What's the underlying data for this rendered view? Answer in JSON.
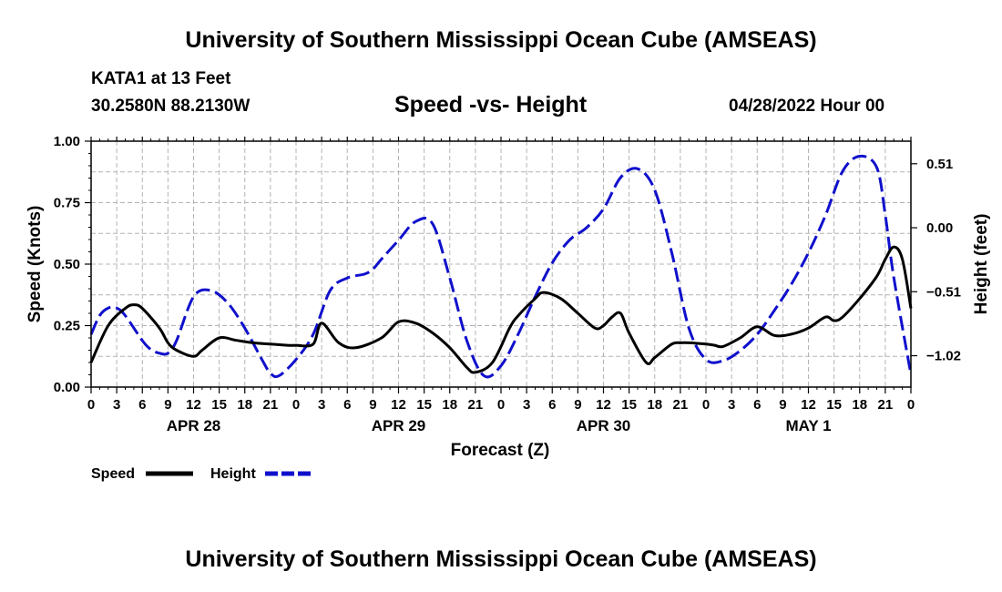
{
  "page": {
    "title_top": "University of Southern Mississippi Ocean Cube (AMSEAS)",
    "title_bottom": "University of Southern Mississippi Ocean Cube (AMSEAS)",
    "station_name": "KATA1 at 13 Feet",
    "station_coords": "30.2580N  88.2130W",
    "forecast_time": "04/28/2022 Hour 00"
  },
  "chart_data": {
    "type": "line",
    "title": "Speed -vs- Height",
    "xlabel": "Forecast (Z)",
    "ylabel": "Speed (Knots)",
    "ylabel_right": "Height (feet)",
    "xlim": [
      0,
      96
    ],
    "ylim": [
      0,
      1.0
    ],
    "ylim_right": [
      -1.27,
      0.69
    ],
    "x_tick_values": [
      0,
      3,
      6,
      9,
      12,
      15,
      18,
      21,
      24,
      27,
      30,
      33,
      36,
      39,
      42,
      45,
      48,
      51,
      54,
      57,
      60,
      63,
      66,
      69,
      72,
      75,
      78,
      81,
      84,
      87,
      90,
      93,
      96
    ],
    "x_tick_labels": [
      "0",
      "3",
      "6",
      "9",
      "12",
      "15",
      "18",
      "21",
      "0",
      "3",
      "6",
      "9",
      "12",
      "15",
      "18",
      "21",
      "0",
      "3",
      "6",
      "9",
      "12",
      "15",
      "18",
      "21",
      "0",
      "3",
      "6",
      "9",
      "12",
      "15",
      "18",
      "21",
      "0"
    ],
    "day_labels": [
      {
        "x": 12,
        "label": "APR 28"
      },
      {
        "x": 36,
        "label": "APR 29"
      },
      {
        "x": 60,
        "label": "APR 30"
      },
      {
        "x": 84,
        "label": "MAY 1"
      }
    ],
    "y_ticks": [
      0.0,
      0.25,
      0.5,
      0.75,
      1.0
    ],
    "y_tick_labels": [
      "0.00",
      "0.25",
      "0.50",
      "0.75",
      "1.00"
    ],
    "y_right_ticks": [
      -1.02,
      -0.51,
      0.0,
      0.51
    ],
    "y_right_tick_labels": [
      "−1.02",
      "−0.51",
      "0.00",
      "0.51"
    ],
    "grid": true,
    "legend": [
      {
        "name": "Speed",
        "color": "#000000",
        "style": "solid"
      },
      {
        "name": "Height",
        "color": "#1010cc",
        "style": "dashed"
      }
    ],
    "series": [
      {
        "name": "Speed",
        "axis": "left",
        "color": "#000000",
        "x": [
          0,
          2,
          4,
          5,
          6,
          8,
          9,
          10,
          12,
          13,
          15,
          17,
          19,
          21,
          23,
          24,
          26,
          27,
          29,
          31,
          34,
          36,
          38,
          40,
          42,
          44,
          45,
          47,
          49,
          50,
          52,
          53,
          55,
          57,
          59,
          60,
          61,
          62,
          63,
          65,
          66,
          68,
          69,
          70,
          72,
          73,
          74,
          76,
          78,
          80,
          82,
          84,
          86,
          87,
          88,
          90,
          92,
          93,
          94,
          95,
          96
        ],
        "values": [
          0.1,
          0.25,
          0.32,
          0.335,
          0.32,
          0.24,
          0.18,
          0.15,
          0.125,
          0.15,
          0.2,
          0.19,
          0.18,
          0.175,
          0.17,
          0.17,
          0.175,
          0.26,
          0.18,
          0.16,
          0.2,
          0.265,
          0.26,
          0.22,
          0.16,
          0.08,
          0.06,
          0.1,
          0.24,
          0.29,
          0.36,
          0.385,
          0.36,
          0.3,
          0.24,
          0.25,
          0.285,
          0.3,
          0.22,
          0.1,
          0.12,
          0.175,
          0.18,
          0.18,
          0.175,
          0.17,
          0.165,
          0.2,
          0.245,
          0.21,
          0.215,
          0.24,
          0.285,
          0.27,
          0.285,
          0.36,
          0.45,
          0.52,
          0.57,
          0.52,
          0.32
        ]
      },
      {
        "name": "Height",
        "axis": "right",
        "color": "#1010cc",
        "x": [
          0,
          1,
          2,
          3,
          4,
          6,
          7,
          8,
          9,
          10,
          12,
          14,
          16,
          18,
          20,
          21,
          22,
          24,
          26,
          28,
          30,
          32,
          33,
          34,
          36,
          38,
          40,
          42,
          44,
          46,
          48,
          50,
          52,
          54,
          56,
          58,
          60,
          62,
          64,
          66,
          68,
          70,
          72,
          74,
          76,
          78,
          80,
          82,
          84,
          86,
          88,
          90,
          92,
          93,
          94,
          96
        ],
        "values": [
          -0.85,
          -0.7,
          -0.64,
          -0.64,
          -0.7,
          -0.9,
          -0.97,
          -1.0,
          -1.0,
          -0.9,
          -0.55,
          -0.5,
          -0.6,
          -0.8,
          -1.05,
          -1.16,
          -1.18,
          -1.05,
          -0.85,
          -0.5,
          -0.4,
          -0.37,
          -0.33,
          -0.25,
          -0.1,
          0.05,
          0.03,
          -0.4,
          -0.9,
          -1.18,
          -1.1,
          -0.85,
          -0.55,
          -0.28,
          -0.1,
          0.0,
          0.15,
          0.4,
          0.47,
          0.3,
          -0.2,
          -0.8,
          -1.05,
          -1.06,
          -0.98,
          -0.85,
          -0.66,
          -0.45,
          -0.2,
          0.1,
          0.45,
          0.57,
          0.48,
          0.1,
          -0.4,
          -1.17
        ]
      }
    ]
  }
}
